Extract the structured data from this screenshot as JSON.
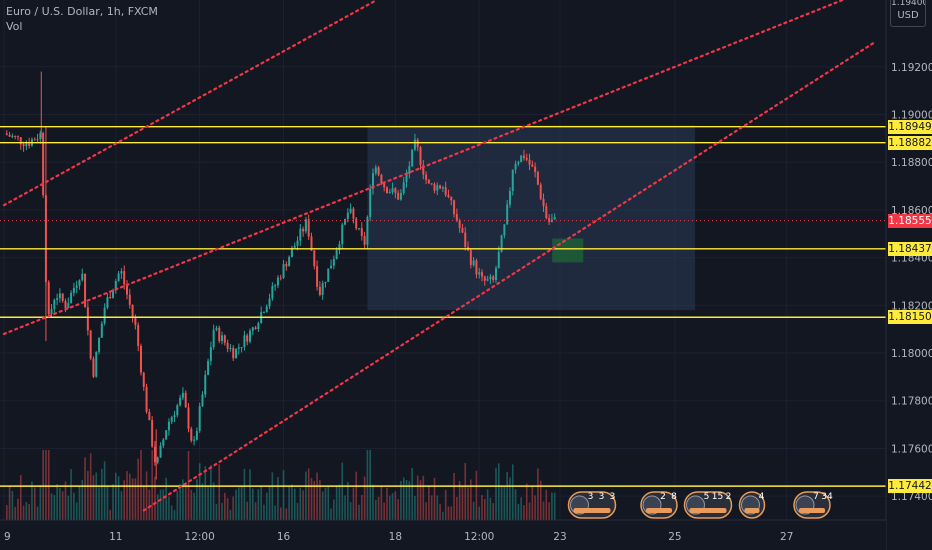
{
  "header": {
    "title": "Euro / U.S. Dollar, 1h, FXCM",
    "indicator": "Vol"
  },
  "currency": {
    "partial_tick": "1.19400",
    "label": "USD"
  },
  "colors": {
    "background": "#131722",
    "up": "#26a69a",
    "down": "#ef5350",
    "level_line": "#ffeb3b",
    "channel": "#f23645",
    "range_box": "#2a3a55",
    "target_box": "#1e5b37"
  },
  "price_axis": {
    "ticks": [
      "1.19200",
      "1.19000",
      "1.18800",
      "1.18600",
      "1.18400",
      "1.18200",
      "1.18000",
      "1.17800",
      "1.17600",
      "1.17400"
    ]
  },
  "price_labels": [
    {
      "value": "1.18949",
      "style": "level"
    },
    {
      "value": "1.18882",
      "style": "level"
    },
    {
      "value": "1.18555",
      "style": "current"
    },
    {
      "value": "1.18437",
      "style": "level"
    },
    {
      "value": "1.18150",
      "style": "level"
    },
    {
      "value": "1.17442",
      "style": "level"
    }
  ],
  "time_axis": {
    "labels": [
      "9",
      "11",
      "12:00",
      "16",
      "18",
      "12:00",
      "23",
      "25",
      "27"
    ]
  },
  "events": [
    {
      "icon": "economic-event-icon",
      "counts": [
        "3",
        "3",
        "3"
      ]
    },
    {
      "icon": "economic-event-icon",
      "counts": [
        "2",
        "8"
      ]
    },
    {
      "icon": "economic-event-icon",
      "counts": [
        "5",
        "15",
        "2"
      ]
    },
    {
      "icon": "economic-event-icon",
      "counts": [
        "4"
      ]
    },
    {
      "icon": "economic-event-icon",
      "counts": [
        "7",
        "34"
      ]
    }
  ],
  "chart_data": {
    "type": "candlestick",
    "symbol": "EUR/USD",
    "interval": "1h",
    "ylim": [
      1.173,
      1.1948
    ],
    "current_price": 1.18555,
    "horizontal_levels": [
      1.18949,
      1.18882,
      1.18437,
      1.1815,
      1.17442
    ],
    "channel_lines": [
      {
        "from": [
          0,
          1.1862
        ],
        "to": [
          24,
          1.1948
        ]
      },
      {
        "from": [
          0,
          1.1808
        ],
        "to": [
          54,
          1.1948
        ]
      },
      {
        "from": [
          9,
          1.1734
        ],
        "to": [
          56,
          1.193
        ]
      }
    ],
    "range_box": {
      "from_x": 23.4,
      "to_x": 44.5,
      "top": 1.18955,
      "bottom": 1.1818
    },
    "target_box": {
      "from_x": 35.3,
      "to_x": 37.3,
      "top": 1.1848,
      "bottom": 1.1838
    },
    "close_path": [
      [
        0,
        1.1892
      ],
      [
        1.5,
        1.1888
      ],
      [
        2.4,
        1.1892
      ],
      [
        2.6,
        1.1852
      ],
      [
        2.8,
        1.1812
      ],
      [
        3.3,
        1.1825
      ],
      [
        4,
        1.182
      ],
      [
        5,
        1.1835
      ],
      [
        5.7,
        1.179
      ],
      [
        6.5,
        1.182
      ],
      [
        7.5,
        1.1835
      ],
      [
        8.5,
        1.181
      ],
      [
        9.1,
        1.178
      ],
      [
        9.8,
        1.1752
      ],
      [
        10.5,
        1.177
      ],
      [
        11.5,
        1.1782
      ],
      [
        12.2,
        1.176
      ],
      [
        13.5,
        1.181
      ],
      [
        14.8,
        1.18
      ],
      [
        16,
        1.181
      ],
      [
        17.2,
        1.1825
      ],
      [
        18.3,
        1.184
      ],
      [
        19.5,
        1.1855
      ],
      [
        20.3,
        1.1825
      ],
      [
        21.2,
        1.184
      ],
      [
        22.2,
        1.186
      ],
      [
        23.2,
        1.1845
      ],
      [
        23.8,
        1.188
      ],
      [
        24.5,
        1.187
      ],
      [
        25.5,
        1.1865
      ],
      [
        26.5,
        1.1888
      ],
      [
        27.3,
        1.187
      ],
      [
        28.3,
        1.187
      ],
      [
        29.2,
        1.1855
      ],
      [
        30,
        1.184
      ],
      [
        30.8,
        1.183
      ],
      [
        31.5,
        1.183
      ],
      [
        32.3,
        1.1855
      ],
      [
        32.8,
        1.188
      ],
      [
        33.5,
        1.1883
      ],
      [
        34.2,
        1.1875
      ],
      [
        35,
        1.1855
      ],
      [
        35.6,
        1.18555
      ]
    ]
  }
}
